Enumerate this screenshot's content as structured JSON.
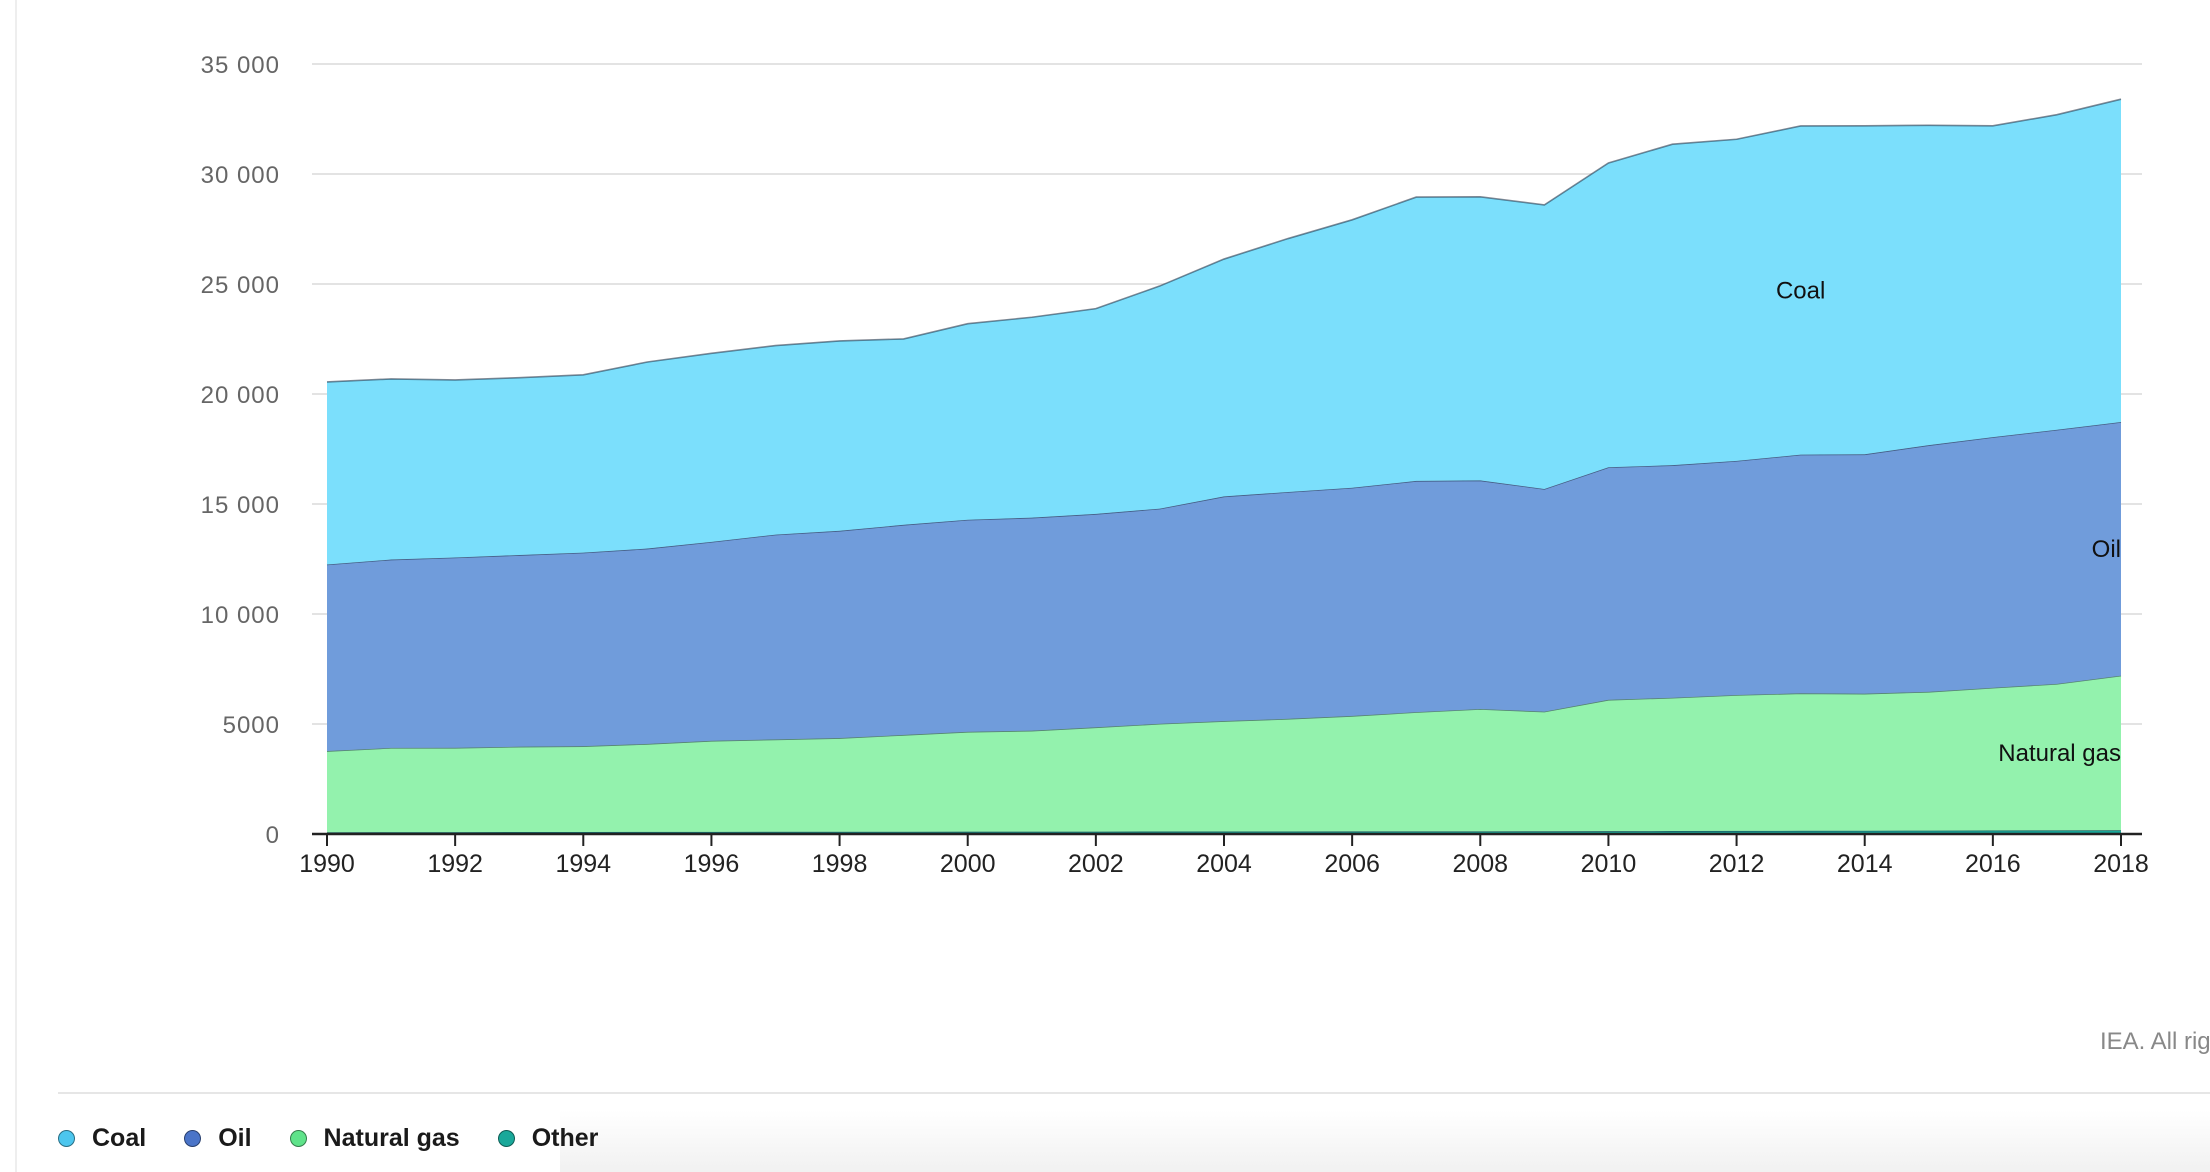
{
  "chart_data": {
    "type": "area",
    "stacked": true,
    "x": [
      1990,
      1991,
      1992,
      1993,
      1994,
      1995,
      1996,
      1997,
      1998,
      1999,
      2000,
      2001,
      2002,
      2003,
      2004,
      2005,
      2006,
      2007,
      2008,
      2009,
      2010,
      2011,
      2012,
      2013,
      2014,
      2015,
      2016,
      2017,
      2018
    ],
    "x_ticks": [
      "1990",
      "1992",
      "1994",
      "1996",
      "1998",
      "2000",
      "2002",
      "2004",
      "2006",
      "2008",
      "2010",
      "2012",
      "2014",
      "2016",
      "2018"
    ],
    "y_ticks": [
      "0",
      "5000",
      "10 000",
      "15 000",
      "20 000",
      "25 000",
      "30 000",
      "35 000"
    ],
    "ylim": [
      0,
      35000
    ],
    "grid": true,
    "series": [
      {
        "name": "Other",
        "color": "#1aa89a",
        "values": [
          80,
          85,
          88,
          90,
          92,
          95,
          98,
          100,
          102,
          104,
          106,
          108,
          110,
          112,
          114,
          116,
          118,
          120,
          122,
          124,
          130,
          135,
          140,
          145,
          150,
          155,
          160,
          165,
          170
        ]
      },
      {
        "name": "Natural gas",
        "color": "#93f2ad",
        "values": [
          3690,
          3830,
          3830,
          3880,
          3900,
          4000,
          4140,
          4200,
          4260,
          4400,
          4540,
          4590,
          4740,
          4900,
          5020,
          5120,
          5250,
          5420,
          5560,
          5440,
          5970,
          6060,
          6180,
          6250,
          6230,
          6310,
          6490,
          6660,
          7030
        ]
      },
      {
        "name": "Oil",
        "color": "#709cdb",
        "values": [
          8480,
          8560,
          8650,
          8710,
          8800,
          8880,
          9040,
          9310,
          9420,
          9550,
          9640,
          9680,
          9700,
          9780,
          10210,
          10310,
          10370,
          10510,
          10390,
          10120,
          10570,
          10570,
          10640,
          10850,
          10880,
          11210,
          11390,
          11550,
          11530
        ]
      },
      {
        "name": "Coal",
        "color": "#7bdffc",
        "values": [
          8300,
          8210,
          8070,
          8060,
          8080,
          8480,
          8570,
          8590,
          8630,
          8450,
          8910,
          9110,
          9330,
          10120,
          10790,
          11520,
          12180,
          12900,
          12890,
          12910,
          13830,
          14590,
          14620,
          14940,
          14930,
          14540,
          14150,
          14320,
          14670
        ]
      }
    ],
    "area_labels": [
      {
        "series": "Coal",
        "text": "Coal"
      },
      {
        "series": "Oil",
        "text": "Oil"
      },
      {
        "series": "Natural gas",
        "text": "Natural gas"
      }
    ],
    "legend_position": "bottom-left"
  },
  "credit": "IEA. All righ",
  "legend": {
    "items": [
      {
        "label": "Coal",
        "color": "#4cc6ee"
      },
      {
        "label": "Oil",
        "color": "#4a74c8"
      },
      {
        "label": "Natural gas",
        "color": "#5fe38a"
      },
      {
        "label": "Other",
        "color": "#1aa89a"
      }
    ]
  }
}
